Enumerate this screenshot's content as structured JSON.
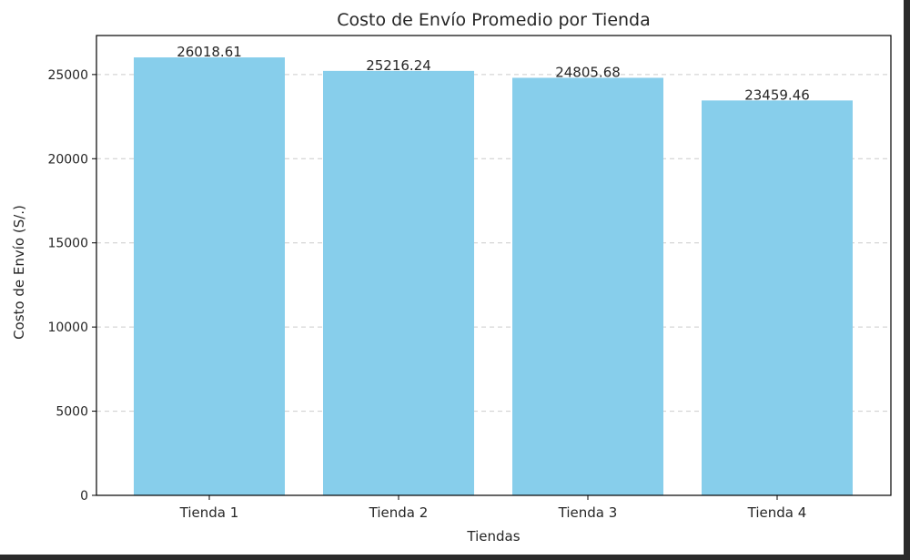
{
  "chart_data": {
    "type": "bar",
    "title": "Costo de Envío Promedio por Tienda",
    "xlabel": "Tiendas",
    "ylabel": "Costo de Envío (S/.)",
    "categories": [
      "Tienda 1",
      "Tienda 2",
      "Tienda 3",
      "Tienda 4"
    ],
    "values": [
      26018.61,
      25216.24,
      24805.68,
      23459.46
    ],
    "data_labels": [
      "26018.61",
      "25216.24",
      "24805.68",
      "23459.46"
    ],
    "ylim": [
      0,
      27318.54
    ],
    "yticks": [
      0,
      5000,
      10000,
      15000,
      20000,
      25000
    ],
    "ytick_labels": [
      "0",
      "5000",
      "10000",
      "15000",
      "20000",
      "25000"
    ],
    "grid": "y-dashed",
    "bar_color": "#87ceeb"
  }
}
